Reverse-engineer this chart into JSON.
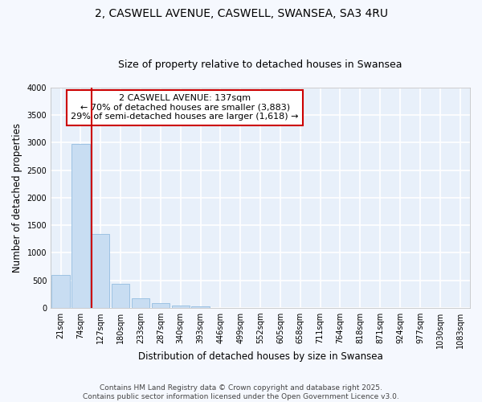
{
  "title": "2, CASWELL AVENUE, CASWELL, SWANSEA, SA3 4RU",
  "subtitle": "Size of property relative to detached houses in Swansea",
  "xlabel": "Distribution of detached houses by size in Swansea",
  "ylabel": "Number of detached properties",
  "bar_color": "#c8ddf2",
  "bar_edge_color": "#94bde0",
  "background_color": "#e8f0fa",
  "grid_color": "#ffffff",
  "fig_background": "#f5f8fe",
  "categories": [
    "21sqm",
    "74sqm",
    "127sqm",
    "180sqm",
    "233sqm",
    "287sqm",
    "340sqm",
    "393sqm",
    "446sqm",
    "499sqm",
    "552sqm",
    "605sqm",
    "658sqm",
    "711sqm",
    "764sqm",
    "818sqm",
    "871sqm",
    "924sqm",
    "977sqm",
    "1030sqm",
    "1083sqm"
  ],
  "values": [
    600,
    2980,
    1340,
    440,
    165,
    80,
    45,
    28,
    0,
    0,
    0,
    0,
    0,
    0,
    0,
    0,
    0,
    0,
    0,
    0,
    0
  ],
  "ylim": [
    0,
    4000
  ],
  "yticks": [
    0,
    500,
    1000,
    1500,
    2000,
    2500,
    3000,
    3500,
    4000
  ],
  "vline_color": "#cc0000",
  "annotation_text": "2 CASWELL AVENUE: 137sqm\n← 70% of detached houses are smaller (3,883)\n29% of semi-detached houses are larger (1,618) →",
  "annotation_box_color": "#cc0000",
  "footer_line1": "Contains HM Land Registry data © Crown copyright and database right 2025.",
  "footer_line2": "Contains public sector information licensed under the Open Government Licence v3.0.",
  "title_fontsize": 10,
  "subtitle_fontsize": 9,
  "axis_label_fontsize": 8.5,
  "tick_fontsize": 7,
  "annotation_fontsize": 8,
  "footer_fontsize": 6.5
}
